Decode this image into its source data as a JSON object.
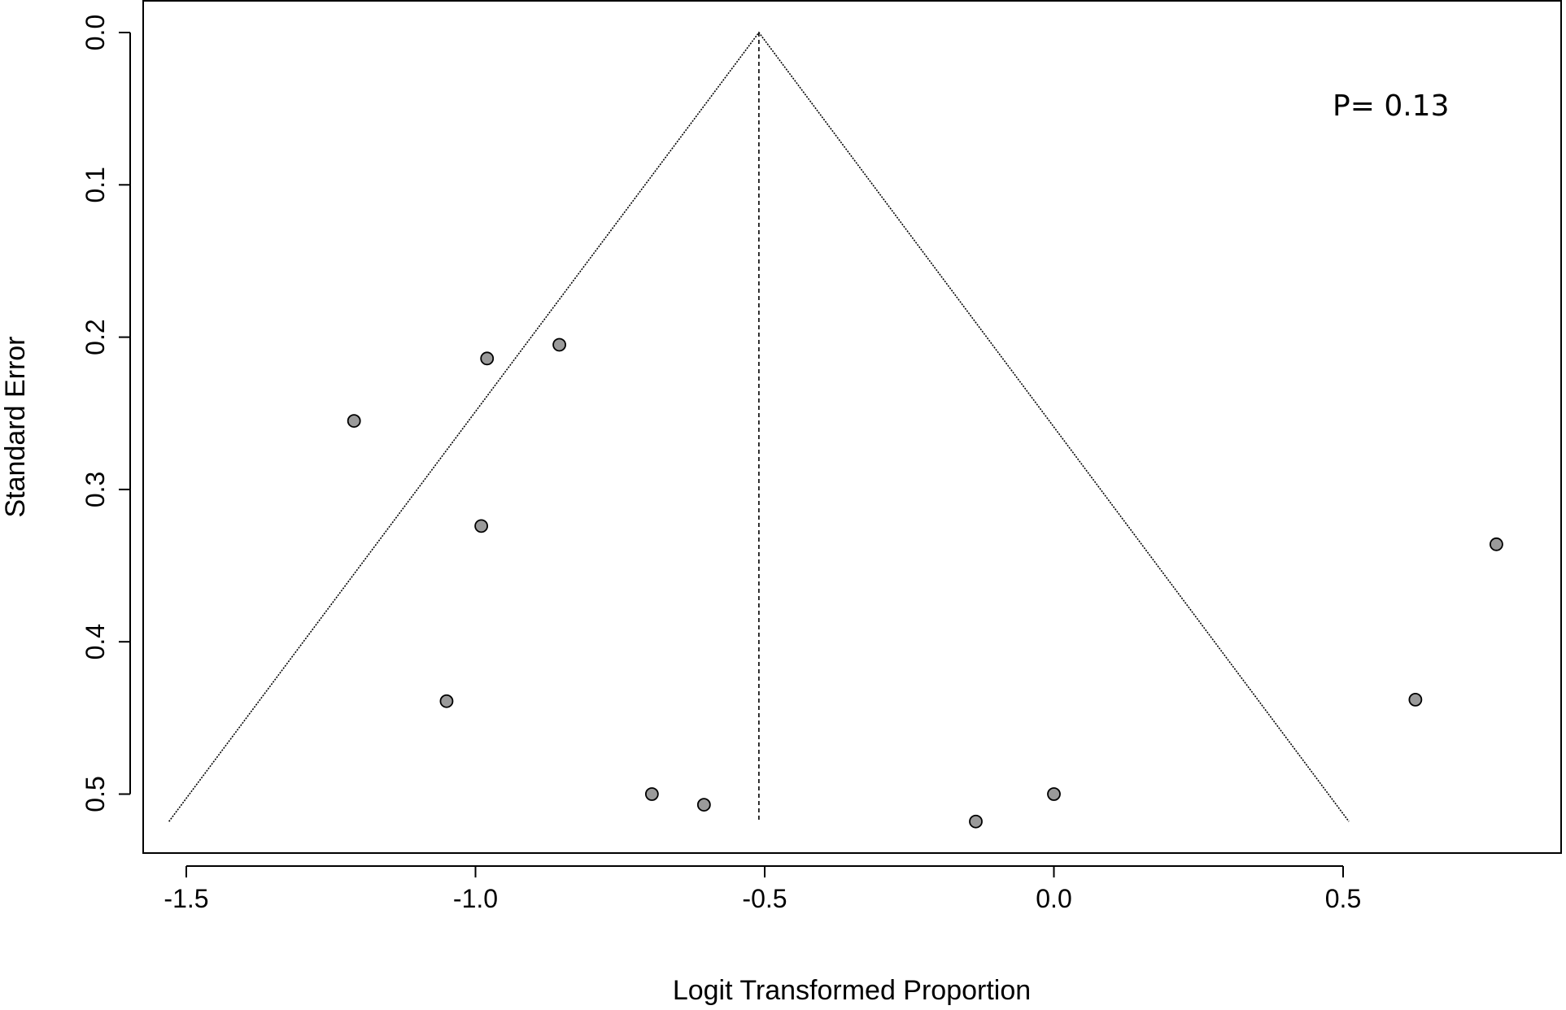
{
  "chart_data": {
    "type": "scatter",
    "title": "",
    "xlabel": "Logit Transformed Proportion",
    "ylabel": "Standard Error",
    "xlim": [
      -1.55,
      0.75
    ],
    "ylim": [
      0.0,
      0.52
    ],
    "y_reversed": true,
    "x_ticks": [
      -1.5,
      -1.0,
      -0.5,
      0.0,
      0.5
    ],
    "x_tick_labels": [
      "-1.5",
      "-1.0",
      "-0.5",
      "0.0",
      "0.5"
    ],
    "y_ticks": [
      0.0,
      0.1,
      0.2,
      0.3,
      0.4,
      0.5
    ],
    "y_tick_labels": [
      "0.0",
      "0.1",
      "0.2",
      "0.3",
      "0.4",
      "0.5"
    ],
    "grid": false,
    "annotation": "P= 0.13",
    "pooled_estimate": -0.51,
    "funnel": {
      "apex": [
        -0.51,
        0.0
      ],
      "left_base": [
        -1.53,
        0.518
      ],
      "right_base": [
        0.51,
        0.518
      ]
    },
    "points": [
      {
        "x": -1.21,
        "y": 0.255
      },
      {
        "x": -0.98,
        "y": 0.214
      },
      {
        "x": -0.855,
        "y": 0.205
      },
      {
        "x": -0.99,
        "y": 0.324
      },
      {
        "x": -1.05,
        "y": 0.439
      },
      {
        "x": -0.695,
        "y": 0.5
      },
      {
        "x": -0.605,
        "y": 0.507
      },
      {
        "x": -0.135,
        "y": 0.518
      },
      {
        "x": 0.0,
        "y": 0.5
      },
      {
        "x": 0.625,
        "y": 0.438
      },
      {
        "x": 0.765,
        "y": 0.336
      }
    ],
    "point_fill": "#9a9a9a",
    "point_stroke": "#000000"
  }
}
